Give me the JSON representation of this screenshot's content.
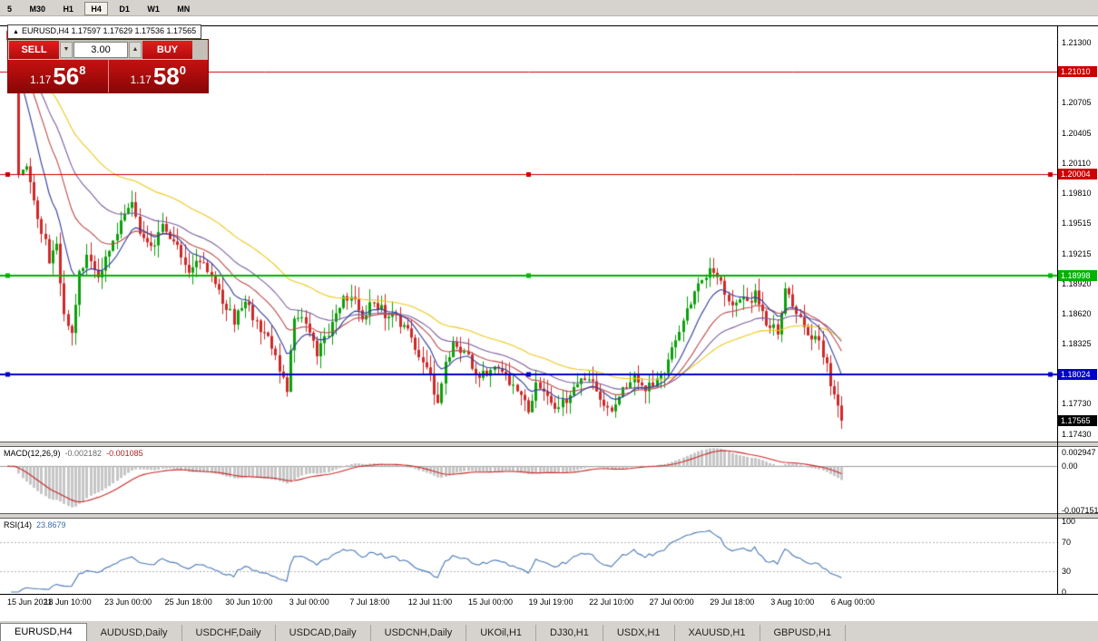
{
  "toolbar": {
    "timeframes": [
      {
        "label": "5",
        "active": false
      },
      {
        "label": "M30",
        "active": false
      },
      {
        "label": "H1",
        "active": false
      },
      {
        "label": "H4",
        "active": true
      },
      {
        "label": "D1",
        "active": false
      },
      {
        "label": "W1",
        "active": false
      },
      {
        "label": "MN",
        "active": false
      }
    ]
  },
  "quote_header": {
    "collapse_glyph": "▲",
    "text": "EURUSD,H4 1.17597 1.17629 1.17536 1.17565"
  },
  "trade_panel": {
    "sell_label": "SELL",
    "buy_label": "BUY",
    "volume": "3.00",
    "spinner_down_glyph": "▼",
    "spinner_up_glyph": "▲",
    "sell_price": {
      "small": "1.17",
      "big": "56",
      "sup": "8"
    },
    "buy_price": {
      "small": "1.17",
      "big": "58",
      "sup": "0"
    }
  },
  "price_axis": {
    "ticks": [
      "1.21300",
      "1.20705",
      "1.20405",
      "1.20110",
      "1.19810",
      "1.19515",
      "1.19215",
      "1.18920",
      "1.18620",
      "1.18325",
      "1.17730",
      "1.17430"
    ],
    "markers": [
      {
        "label": "1.21010",
        "price": 1.2101,
        "bg": "#cc0000"
      },
      {
        "label": "1.20004",
        "price": 1.20004,
        "bg": "#cc0000"
      },
      {
        "label": "1.18998",
        "price": 1.18998,
        "bg": "#00b300"
      },
      {
        "label": "1.18024",
        "price": 1.18024,
        "bg": "#0000cc"
      },
      {
        "label": "1.17565",
        "price": 1.17565,
        "bg": "#000000"
      }
    ]
  },
  "hlines": [
    {
      "price": 1.2101,
      "color": "#cc0000",
      "width": 1,
      "handles": false
    },
    {
      "price": 1.20004,
      "color": "#cc0000",
      "width": 1,
      "handles": true
    },
    {
      "price": 1.18998,
      "color": "#00b300",
      "width": 2,
      "handles": true
    },
    {
      "price": 1.18024,
      "color": "#0000cc",
      "width": 2,
      "handles": true
    }
  ],
  "macd": {
    "label": "MACD(12,26,9)",
    "value_main": "-0.002182",
    "value_signal": "-0.001085",
    "axis": [
      {
        "label": "0.002947",
        "value": 0.002947
      },
      {
        "label": "0.00",
        "value": 0
      },
      {
        "label": "-0.007151",
        "value": -0.007151
      }
    ]
  },
  "rsi": {
    "label": "RSI(14)",
    "value": "23.8679",
    "levels": [
      70,
      30
    ],
    "axis": [
      {
        "label": "100",
        "value": 100
      },
      {
        "label": "70",
        "value": 70
      },
      {
        "label": "30",
        "value": 30
      },
      {
        "label": "0",
        "value": 0
      }
    ]
  },
  "time_axis": {
    "labels": [
      {
        "bar": 0,
        "text": "15 Jun 2021"
      },
      {
        "bar": 16,
        "text": "18 Jun 10:00"
      },
      {
        "bar": 32,
        "text": "23 Jun 00:00"
      },
      {
        "bar": 48,
        "text": "25 Jun 18:00"
      },
      {
        "bar": 64,
        "text": "30 Jun 10:00"
      },
      {
        "bar": 80,
        "text": "3 Jul 00:00"
      },
      {
        "bar": 96,
        "text": "7 Jul 18:00"
      },
      {
        "bar": 112,
        "text": "12 Jul 11:00"
      },
      {
        "bar": 128,
        "text": "15 Jul 00:00"
      },
      {
        "bar": 144,
        "text": "19 Jul 19:00"
      },
      {
        "bar": 160,
        "text": "22 Jul 10:00"
      },
      {
        "bar": 176,
        "text": "27 Jul 00:00"
      },
      {
        "bar": 192,
        "text": "29 Jul 18:00"
      },
      {
        "bar": 208,
        "text": "3 Aug 10:00"
      },
      {
        "bar": 224,
        "text": "6 Aug 00:00"
      }
    ]
  },
  "tabs": [
    {
      "label": "EURUSD,H4",
      "active": true
    },
    {
      "label": "AUDUSD,Daily",
      "active": false
    },
    {
      "label": "USDCHF,Daily",
      "active": false
    },
    {
      "label": "USDCAD,Daily",
      "active": false
    },
    {
      "label": "USDCNH,Daily",
      "active": false
    },
    {
      "label": "UKOil,H1",
      "active": false
    },
    {
      "label": "DJ30,H1",
      "active": false
    },
    {
      "label": "USDX,H1",
      "active": false
    },
    {
      "label": "XAUUSD,H1",
      "active": false
    },
    {
      "label": "GBPUSD,H1",
      "active": false
    }
  ],
  "chart_data": {
    "type": "candlestick",
    "symbol": "EURUSD",
    "timeframe": "H4",
    "bars": 222,
    "price_top": 1.2147,
    "price_bottom": 1.17358,
    "final_close": 1.17565,
    "up_color": "#0aa10a",
    "down_color": "#d02828",
    "close_waypoints": [
      [
        0,
        1.2128
      ],
      [
        2,
        1.2118
      ],
      [
        3,
        1.1996
      ],
      [
        5,
        1.2008
      ],
      [
        7,
        1.1975
      ],
      [
        9,
        1.1945
      ],
      [
        11,
        1.1916
      ],
      [
        13,
        1.1928
      ],
      [
        15,
        1.1858
      ],
      [
        17,
        1.1846
      ],
      [
        19,
        1.1902
      ],
      [
        21,
        1.1916
      ],
      [
        24,
        1.1898
      ],
      [
        27,
        1.1928
      ],
      [
        30,
        1.195
      ],
      [
        33,
        1.1974
      ],
      [
        35,
        1.1936
      ],
      [
        38,
        1.1926
      ],
      [
        41,
        1.195
      ],
      [
        44,
        1.1932
      ],
      [
        48,
        1.1906
      ],
      [
        52,
        1.1916
      ],
      [
        56,
        1.1882
      ],
      [
        60,
        1.1856
      ],
      [
        63,
        1.1872
      ],
      [
        66,
        1.1852
      ],
      [
        69,
        1.1842
      ],
      [
        72,
        1.181
      ],
      [
        74,
        1.1788
      ],
      [
        76,
        1.1862
      ],
      [
        79,
        1.1856
      ],
      [
        82,
        1.1824
      ],
      [
        85,
        1.1842
      ],
      [
        88,
        1.1872
      ],
      [
        91,
        1.1884
      ],
      [
        94,
        1.1856
      ],
      [
        97,
        1.1874
      ],
      [
        100,
        1.1862
      ],
      [
        103,
        1.1856
      ],
      [
        106,
        1.1848
      ],
      [
        109,
        1.1818
      ],
      [
        112,
        1.1798
      ],
      [
        114,
        1.1776
      ],
      [
        116,
        1.181
      ],
      [
        118,
        1.1838
      ],
      [
        121,
        1.1824
      ],
      [
        124,
        1.1806
      ],
      [
        127,
        1.18
      ],
      [
        130,
        1.1812
      ],
      [
        133,
        1.1796
      ],
      [
        136,
        1.1782
      ],
      [
        138,
        1.1768
      ],
      [
        140,
        1.179
      ],
      [
        143,
        1.1776
      ],
      [
        146,
        1.1766
      ],
      [
        149,
        1.1786
      ],
      [
        152,
        1.1802
      ],
      [
        155,
        1.1792
      ],
      [
        157,
        1.1774
      ],
      [
        160,
        1.177
      ],
      [
        163,
        1.1788
      ],
      [
        166,
        1.1802
      ],
      [
        169,
        1.1786
      ],
      [
        172,
        1.1798
      ],
      [
        175,
        1.1814
      ],
      [
        178,
        1.1844
      ],
      [
        181,
        1.1874
      ],
      [
        184,
        1.1894
      ],
      [
        187,
        1.1906
      ],
      [
        189,
        1.189
      ],
      [
        192,
        1.187
      ],
      [
        195,
        1.1874
      ],
      [
        198,
        1.188
      ],
      [
        201,
        1.1854
      ],
      [
        204,
        1.1844
      ],
      [
        206,
        1.189
      ],
      [
        208,
        1.1872
      ],
      [
        211,
        1.1846
      ],
      [
        214,
        1.184
      ],
      [
        216,
        1.1822
      ],
      [
        218,
        1.1794
      ],
      [
        220,
        1.1768
      ],
      [
        221,
        1.17565
      ]
    ],
    "moving_averages": [
      {
        "period": 55,
        "color": "#edc91c"
      },
      {
        "period": 34,
        "color": "#7d5fa0"
      },
      {
        "period": 21,
        "color": "#bf4b4b"
      },
      {
        "period": 10,
        "color": "#2f3d9e"
      }
    ],
    "macd_range": [
      0.0031,
      -0.0076
    ],
    "histogram_color": "#c6c6c6",
    "macd_signal_color": "#cc2a2a",
    "rsi_color": "#4a7ab5"
  }
}
